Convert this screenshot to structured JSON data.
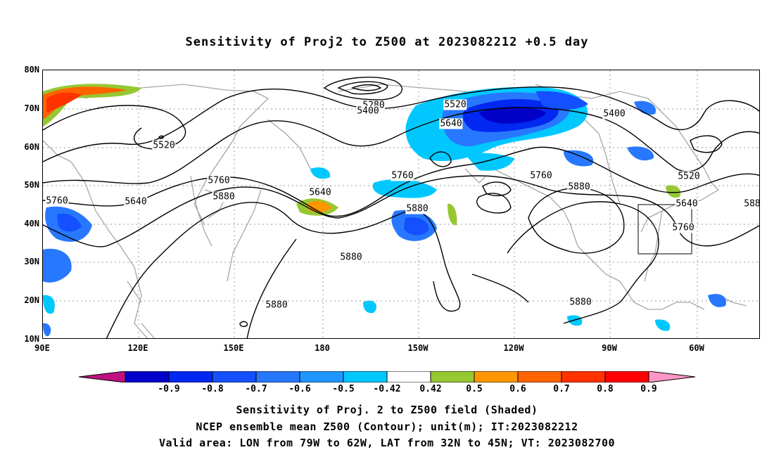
{
  "title": "Sensitivity of Proj2 to Z500 at 2023082212 +0.5 day",
  "y_labels": [
    "80N",
    "70N",
    "60N",
    "50N",
    "40N",
    "30N",
    "20N",
    "10N"
  ],
  "x_labels": [
    "90E",
    "120E",
    "150E",
    "180",
    "150W",
    "120W",
    "90W",
    "60W"
  ],
  "contour_labels": [
    {
      "text": "5280"
    },
    {
      "text": "5400"
    },
    {
      "text": "5520"
    },
    {
      "text": "5400"
    },
    {
      "text": "5640"
    },
    {
      "text": "5520"
    },
    {
      "text": "5760"
    },
    {
      "text": "5880"
    },
    {
      "text": "5640"
    },
    {
      "text": "5760"
    },
    {
      "text": "5880"
    },
    {
      "text": "5760"
    },
    {
      "text": "5880"
    },
    {
      "text": "5520"
    },
    {
      "text": "5640"
    },
    {
      "text": "5760"
    },
    {
      "text": "588"
    },
    {
      "text": "5640"
    },
    {
      "text": "5760"
    },
    {
      "text": "5880"
    },
    {
      "text": "5880"
    },
    {
      "text": "5880"
    }
  ],
  "colorbar": {
    "labels": [
      "-0.9",
      "-0.8",
      "-0.7",
      "-0.6",
      "-0.5",
      "-0.42",
      "0.42",
      "0.5",
      "0.6",
      "0.7",
      "0.8",
      "0.9"
    ],
    "colors": [
      "#c01180",
      "#0000c8",
      "#0028f0",
      "#1450ff",
      "#2878ff",
      "#1e96ff",
      "#00c8ff",
      "#ffffff",
      "#96c832",
      "#ff9600",
      "#ff6400",
      "#ff3200",
      "#ff0000",
      "#ff96c8"
    ]
  },
  "captions": [
    "Sensitivity of Proj. 2 to Z500 field (Shaded)",
    "NCEP ensemble mean Z500 (Contour); unit(m); IT:2023082212",
    "Valid area: LON from 79W to 62W, LAT from 32N to 45N; VT: 2023082700"
  ]
}
